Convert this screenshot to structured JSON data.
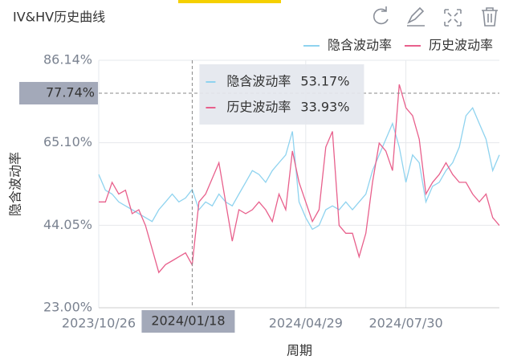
{
  "chart_data": {
    "type": "line",
    "title": "IV&HV历史曲线",
    "x_label": "周期",
    "y_label": "隐含波动率",
    "categories": [
      "2023/10/26",
      null,
      null,
      null,
      null,
      null,
      null,
      null,
      null,
      null,
      null,
      null,
      null,
      null,
      "2024/01/18",
      null,
      null,
      null,
      null,
      null,
      null,
      null,
      null,
      null,
      null,
      null,
      null,
      null,
      null,
      null,
      null,
      "2024/04/29",
      null,
      null,
      null,
      null,
      null,
      null,
      null,
      null,
      null,
      null,
      null,
      null,
      null,
      null,
      "2024/07/30",
      null,
      null,
      null,
      null,
      null,
      null,
      null,
      null,
      null,
      null,
      null,
      null,
      null,
      null
    ],
    "series": [
      {
        "name": "隐含波动率",
        "color": "#8fd3ef",
        "values": [
          57,
          53,
          52,
          50,
          49,
          48,
          47,
          46,
          45,
          48,
          50,
          52,
          50,
          51,
          53.17,
          48,
          50,
          49,
          52,
          50,
          49,
          52,
          55,
          58,
          57,
          55,
          58,
          60,
          62,
          68,
          50,
          46,
          43,
          44,
          48,
          49,
          48,
          50,
          48,
          50,
          52,
          58,
          62,
          66,
          70,
          64,
          55,
          62,
          60,
          50,
          54,
          55,
          58,
          60,
          64,
          72,
          74,
          70,
          66,
          58,
          62
        ],
        "value_labels": [
          null,
          null,
          null,
          null,
          null,
          null,
          null,
          null,
          null,
          null,
          null,
          null,
          null,
          null,
          "53.17%",
          null,
          null,
          null,
          null,
          null,
          null,
          null,
          null,
          null,
          null,
          null,
          null,
          null,
          null,
          null,
          null,
          null,
          null,
          null,
          null,
          null,
          null,
          null,
          null,
          null,
          null,
          null,
          null,
          null,
          null,
          null,
          null,
          null,
          null,
          null,
          null,
          null,
          null,
          null,
          null,
          null,
          null,
          null,
          null,
          null,
          null
        ]
      },
      {
        "name": "历史波动率",
        "color": "#e8608c",
        "values": [
          50,
          50,
          55,
          52,
          53,
          47,
          48,
          44,
          38,
          32,
          34,
          35,
          36,
          37,
          33.93,
          50,
          52,
          56,
          60,
          50,
          40,
          48,
          47,
          48,
          50,
          48,
          45,
          52,
          48,
          63,
          55,
          50,
          45,
          48,
          64,
          68,
          44,
          42,
          42,
          36,
          42,
          55,
          65,
          63,
          58,
          80,
          74,
          72,
          66,
          52,
          55,
          57,
          60,
          57,
          55,
          55,
          52,
          50,
          52,
          46,
          44
        ],
        "value_labels": [
          null,
          null,
          null,
          null,
          null,
          null,
          null,
          null,
          null,
          null,
          null,
          null,
          null,
          null,
          "33.93%",
          null,
          null,
          null,
          null,
          null,
          null,
          null,
          null,
          null,
          null,
          null,
          null,
          null,
          null,
          null,
          null,
          null,
          null,
          null,
          null,
          null,
          null,
          null,
          null,
          null,
          null,
          null,
          null,
          null,
          null,
          null,
          null,
          null,
          null,
          null,
          null,
          null,
          null,
          null,
          null,
          null,
          null,
          null,
          null,
          null,
          null
        ]
      }
    ],
    "ylim": [
      23,
      86.14
    ],
    "yticks": [
      {
        "value": 23,
        "label": "23.00%"
      },
      {
        "value": 44.05,
        "label": "44.05%"
      },
      {
        "value": 65.1,
        "label": "65.10%"
      },
      {
        "value": 86.14,
        "label": "86.14%"
      }
    ],
    "y_pointer": {
      "value": 77.74,
      "label": "77.74%"
    },
    "grid": true,
    "legend": "top-right"
  }
}
